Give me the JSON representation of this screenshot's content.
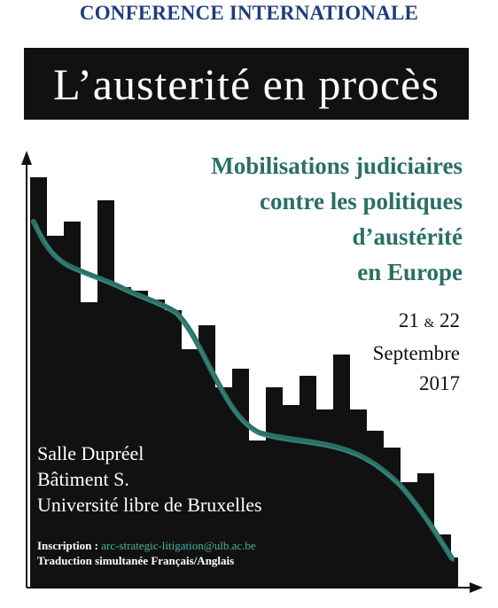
{
  "header": {
    "label": "CONFERENCE INTERNATIONALE"
  },
  "title": "L’austerité en procès",
  "subtitle": {
    "lines": [
      "Mobilisations judiciaires",
      "contre les politiques",
      "d’austérité",
      "en Europe"
    ]
  },
  "dates": {
    "day1": "21",
    "amp": "&",
    "day2": "22",
    "month": "Septembre",
    "year": "2017"
  },
  "venue": {
    "line1": "Salle Dupréel",
    "line2": "Bâtiment S.",
    "line3": "Université libre de Bruxelles"
  },
  "info": {
    "inscription_label": "Inscription : ",
    "email": "arc-strategic-litigation@ulb.ac.be",
    "translation": "Traduction simultanée Français/Anglais"
  },
  "colors": {
    "accent": "#2a6f66",
    "header": "#1f3c7a",
    "bars": "#111111"
  }
}
